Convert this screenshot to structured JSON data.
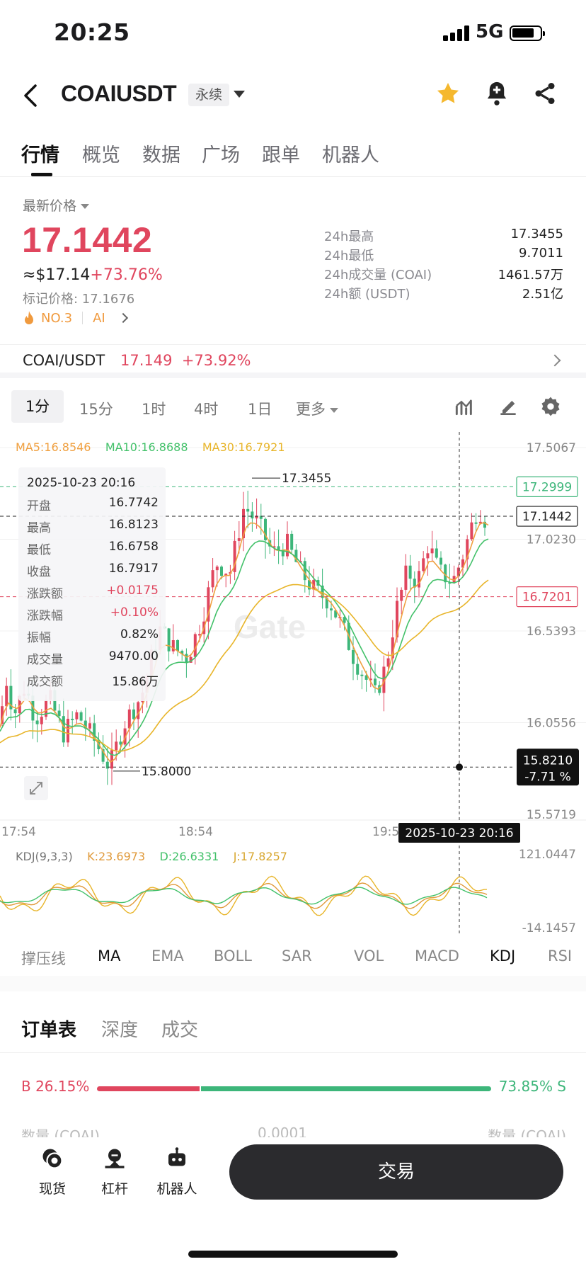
{
  "status_bar": {
    "time": "20:25",
    "network": "5G"
  },
  "header": {
    "pair": "COAIUSDT",
    "contract_type": "永续"
  },
  "tabs": [
    {
      "label": "行情",
      "active": true
    },
    {
      "label": "概览"
    },
    {
      "label": "数据"
    },
    {
      "label": "广场"
    },
    {
      "label": "跟单"
    },
    {
      "label": "机器人"
    }
  ],
  "ticker": {
    "latest_label": "最新价格",
    "last_price": "17.1442",
    "usd_value": "≈$17.14",
    "change_pct": "+73.76%",
    "mark_price": "标记价格: 17.1676",
    "rank": "NO.3",
    "tag": "AI",
    "stats": [
      {
        "label": "24h最高",
        "value": "17.3455"
      },
      {
        "label": "24h最低",
        "value": "9.7011"
      },
      {
        "label": "24h成交量 (COAI)",
        "value": "1461.57万"
      },
      {
        "label": "24h额 (USDT)",
        "value": "2.51亿"
      }
    ]
  },
  "spot_pair": {
    "name": "COAI/USDT",
    "price": "17.149",
    "change": "+73.92%"
  },
  "intervals": [
    {
      "label": "1分",
      "active": true
    },
    {
      "label": "15分"
    },
    {
      "label": "1时"
    },
    {
      "label": "4时"
    },
    {
      "label": "1日"
    },
    {
      "label": "更多"
    }
  ],
  "chart": {
    "ma": {
      "ma5": "MA5:16.8546",
      "ma10": "MA10:16.8688",
      "ma30": "MA30:16.7921"
    },
    "y_ticks": [
      "17.5067",
      "17.0230",
      "16.5393",
      "16.0556",
      "15.5719"
    ],
    "x_ticks": [
      "17:54",
      "18:54",
      "19:5"
    ],
    "high_marker": "17.3455",
    "low_marker": "15.8000",
    "price_tags": {
      "upper": "17.2999",
      "last": "17.1442",
      "lower": "16.7201"
    },
    "crosshair": {
      "price": "15.8210",
      "change": "-7.71 %",
      "time": "2025-10-23 20:16"
    },
    "ohlc_tooltip": {
      "date": "2025-10-23 20:16",
      "rows": [
        {
          "k": "开盘",
          "v": "16.7742"
        },
        {
          "k": "最高",
          "v": "16.8123"
        },
        {
          "k": "最低",
          "v": "16.6758"
        },
        {
          "k": "收盘",
          "v": "16.7917"
        },
        {
          "k": "涨跌额",
          "v": "+0.0175",
          "red": true
        },
        {
          "k": "涨跌幅",
          "v": "+0.10%",
          "red": true
        },
        {
          "k": "振幅",
          "v": "0.82%"
        },
        {
          "k": "成交量",
          "v": "9470.00"
        },
        {
          "k": "成交额",
          "v": "15.86万"
        }
      ]
    },
    "kdj": {
      "label": "KDJ(9,3,3)",
      "k": "K:23.6973",
      "d": "D:26.6331",
      "j": "J:17.8257",
      "top": "121.0447",
      "bottom": "-14.1457"
    },
    "colors": {
      "up": "#e0465e",
      "down": "#3db67a",
      "ma5": "#f0a040",
      "ma10": "#43c16a",
      "ma30": "#e8b52a"
    }
  },
  "indicators": [
    "撑压线",
    "MA",
    "EMA",
    "BOLL",
    "SAR",
    "VOL",
    "MACD",
    "KDJ",
    "RSI"
  ],
  "order_book": {
    "tabs": [
      {
        "label": "订单表",
        "active": true
      },
      {
        "label": "深度"
      },
      {
        "label": "成交"
      }
    ],
    "buy": "B 26.15%",
    "sell": "73.85% S",
    "buy_ratio": 0.2615,
    "faded_cols": [
      "数量 (COAI)",
      "0.0001",
      "数量 (COAI)"
    ]
  },
  "bottom_nav": [
    {
      "label": "现货",
      "icon": "spot-icon"
    },
    {
      "label": "杠杆",
      "icon": "leverage-icon"
    },
    {
      "label": "机器人",
      "icon": "robot-icon"
    }
  ],
  "trade_button": "交易"
}
